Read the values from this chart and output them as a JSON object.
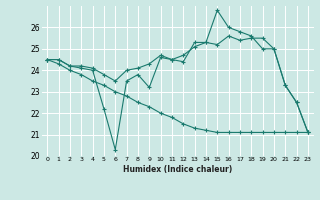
{
  "xlabel": "Humidex (Indice chaleur)",
  "bg_color": "#cce8e4",
  "grid_color": "#ffffff",
  "line_color": "#1a7a6e",
  "xlim": [
    -0.5,
    23.5
  ],
  "ylim": [
    20,
    27
  ],
  "xticks": [
    0,
    1,
    2,
    3,
    4,
    5,
    6,
    7,
    8,
    9,
    10,
    11,
    12,
    13,
    14,
    15,
    16,
    17,
    18,
    19,
    20,
    21,
    22,
    23
  ],
  "yticks": [
    20,
    21,
    22,
    23,
    24,
    25,
    26
  ],
  "series": [
    {
      "x": [
        0,
        1,
        2,
        3,
        4,
        5,
        6,
        7,
        8,
        9,
        10,
        11,
        12,
        13,
        14,
        15,
        16,
        17,
        18,
        19,
        20,
        21,
        22,
        23
      ],
      "y": [
        24.5,
        24.5,
        24.2,
        24.1,
        24.0,
        22.2,
        20.3,
        23.5,
        23.8,
        23.2,
        24.6,
        24.5,
        24.4,
        25.3,
        25.3,
        26.8,
        26.0,
        25.8,
        25.6,
        25.0,
        25.0,
        23.3,
        22.5,
        21.1
      ]
    },
    {
      "x": [
        0,
        1,
        2,
        3,
        4,
        5,
        6,
        7,
        8,
        9,
        10,
        11,
        12,
        13,
        14,
        15,
        16,
        17,
        18,
        19,
        20,
        21,
        22,
        23
      ],
      "y": [
        24.5,
        24.5,
        24.2,
        24.2,
        24.1,
        23.8,
        23.5,
        24.0,
        24.1,
        24.3,
        24.7,
        24.5,
        24.7,
        25.1,
        25.3,
        25.2,
        25.6,
        25.4,
        25.5,
        25.5,
        25.0,
        23.3,
        22.5,
        21.1
      ]
    },
    {
      "x": [
        0,
        1,
        2,
        3,
        4,
        5,
        6,
        7,
        8,
        9,
        10,
        11,
        12,
        13,
        14,
        15,
        16,
        17,
        18,
        19,
        20,
        21,
        22,
        23
      ],
      "y": [
        24.5,
        24.3,
        24.0,
        23.8,
        23.5,
        23.3,
        23.0,
        22.8,
        22.5,
        22.3,
        22.0,
        21.8,
        21.5,
        21.3,
        21.2,
        21.1,
        21.1,
        21.1,
        21.1,
        21.1,
        21.1,
        21.1,
        21.1,
        21.1
      ]
    }
  ]
}
